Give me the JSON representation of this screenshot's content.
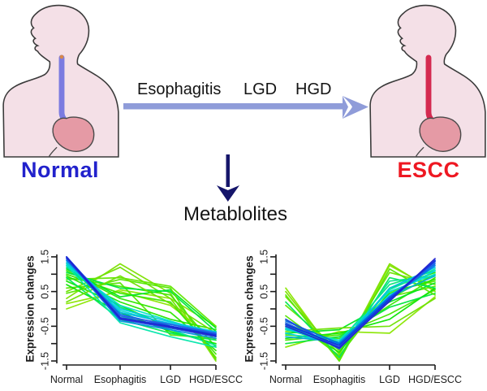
{
  "top": {
    "left_label": "Normal",
    "right_label": "ESCC",
    "stages": [
      "Esophagitis",
      "LGD",
      "HGD"
    ],
    "down_label": "Metablolites",
    "colors": {
      "normal_label": "#2222cc",
      "escc_label": "#ee1822",
      "stage_arrow": "#8f9cd9",
      "down_arrow": "#15156a",
      "body_fill": "#f4e0e7",
      "body_stroke": "#3a3a3a",
      "esophagus_normal": "#7b7be0",
      "esophagus_escc": "#d42a50",
      "esophagus_tip": "#d8884a",
      "stomach_fill": "#e59aa5",
      "stomach_stroke": "#4a4a4a"
    }
  },
  "chart_data": [
    {
      "type": "line",
      "title": "",
      "xlabel": "",
      "ylabel": "Expression changes",
      "categories": [
        "Normal",
        "Esophagitis",
        "LGD",
        "HGD/ESCC"
      ],
      "ytick_labels": [
        1.5,
        0.5,
        -0.5,
        -1.5
      ],
      "ytick_marks": [
        1.5,
        1.0,
        0.5,
        0.0,
        -0.5,
        -1.0,
        -1.5
      ],
      "ylim": [
        -1.6,
        1.6
      ],
      "grid": false,
      "legend": "none",
      "trend": "decreasing",
      "series": [
        {
          "color": "#8ae600",
          "values": [
            0.0,
            0.55,
            0.3,
            -0.5
          ]
        },
        {
          "color": "#7de000",
          "values": [
            0.3,
            1.3,
            0.45,
            -1.5
          ]
        },
        {
          "color": "#70e000",
          "values": [
            0.5,
            1.2,
            0.3,
            -1.4
          ]
        },
        {
          "color": "#62e600",
          "values": [
            0.85,
            0.9,
            0.65,
            -0.5
          ]
        },
        {
          "color": "#55e600",
          "values": [
            0.6,
            0.75,
            -0.75,
            -0.85
          ]
        },
        {
          "color": "#8ae600",
          "values": [
            0.15,
            0.5,
            0.1,
            -0.9
          ]
        },
        {
          "color": "#47e600",
          "values": [
            0.9,
            0.65,
            0.4,
            -1.1
          ]
        },
        {
          "color": "#3ae600",
          "values": [
            1.0,
            0.45,
            0.2,
            -1.3
          ]
        },
        {
          "color": "#2ee600",
          "values": [
            1.1,
            0.3,
            -0.1,
            -1.2
          ]
        },
        {
          "color": "#22e600",
          "values": [
            0.95,
            0.2,
            -0.3,
            -0.6
          ]
        },
        {
          "color": "#16e600",
          "values": [
            0.8,
            0.1,
            -0.55,
            -0.75
          ]
        },
        {
          "color": "#0ae600",
          "values": [
            0.7,
            -0.1,
            -0.65,
            -1.0
          ]
        },
        {
          "color": "#00e61c",
          "values": [
            1.15,
            0.35,
            0.55,
            -0.55
          ]
        },
        {
          "color": "#00e63c",
          "values": [
            1.05,
            0.6,
            0.5,
            -0.65
          ]
        },
        {
          "color": "#00e65a",
          "values": [
            0.9,
            -0.3,
            -0.7,
            -0.9
          ]
        },
        {
          "color": "#00e674",
          "values": [
            1.2,
            0.05,
            -0.5,
            -0.8
          ]
        },
        {
          "color": "#00e68f",
          "values": [
            1.3,
            -0.2,
            -0.6,
            -1.05
          ]
        },
        {
          "color": "#55e600",
          "values": [
            0.45,
            0.85,
            0.6,
            -1.45
          ]
        },
        {
          "color": "#6ee000",
          "values": [
            0.2,
            0.95,
            0.15,
            -0.7
          ]
        },
        {
          "color": "#00e6aa",
          "values": [
            1.25,
            -0.4,
            -0.8,
            -1.1
          ]
        },
        {
          "color": "#00e0c8",
          "values": [
            1.25,
            0.1,
            -0.35,
            -0.75
          ]
        },
        {
          "color": "#00d8d0",
          "values": [
            1.3,
            -0.05,
            -0.45,
            -0.7
          ]
        },
        {
          "color": "#00c8e0",
          "values": [
            1.4,
            0.0,
            -0.38,
            -0.66
          ]
        },
        {
          "color": "#00b4e6",
          "values": [
            1.35,
            -0.1,
            -0.42,
            -0.68
          ]
        },
        {
          "color": "#0090e0",
          "values": [
            1.45,
            -0.35,
            -0.6,
            -0.85
          ]
        },
        {
          "color": "#0073e6",
          "values": [
            1.4,
            -0.15,
            -0.5,
            -0.72
          ]
        },
        {
          "color": "#2a5ae8",
          "values": [
            1.5,
            -0.2,
            -0.45,
            -0.7
          ]
        },
        {
          "color": "#1f4be6",
          "values": [
            1.45,
            -0.3,
            -0.55,
            -0.8
          ]
        },
        {
          "color": "#1133dd",
          "values": [
            1.5,
            -0.25,
            -0.5,
            -0.75
          ]
        },
        {
          "color": "#2222d0",
          "values": [
            1.48,
            -0.28,
            -0.52,
            -0.78
          ]
        }
      ]
    },
    {
      "type": "line",
      "title": "",
      "xlabel": "",
      "ylabel": "Expression changes",
      "categories": [
        "Normal",
        "Esophagitis",
        "LGD",
        "HGD/ESCC"
      ],
      "ytick_labels": [
        1.5,
        0.5,
        -0.5,
        -1.5
      ],
      "ytick_marks": [
        1.5,
        1.0,
        0.5,
        0.0,
        -0.5,
        -1.0,
        -1.5
      ],
      "ylim": [
        -1.6,
        1.6
      ],
      "grid": false,
      "legend": "none",
      "trend": "dip-then-increasing",
      "series": [
        {
          "color": "#8ae600",
          "values": [
            0.6,
            -1.5,
            1.25,
            0.55
          ]
        },
        {
          "color": "#7de000",
          "values": [
            0.5,
            -1.45,
            1.3,
            0.5
          ]
        },
        {
          "color": "#70e000",
          "values": [
            0.35,
            -1.3,
            1.05,
            0.7
          ]
        },
        {
          "color": "#62e600",
          "values": [
            0.1,
            -1.2,
            0.35,
            0.65
          ]
        },
        {
          "color": "#55e600",
          "values": [
            -0.2,
            -1.35,
            0.5,
            0.8
          ]
        },
        {
          "color": "#8ae600",
          "values": [
            -1.1,
            -0.65,
            -0.7,
            0.35
          ]
        },
        {
          "color": "#47e600",
          "values": [
            -0.9,
            -0.75,
            -0.15,
            0.55
          ]
        },
        {
          "color": "#3ae600",
          "values": [
            -0.75,
            -0.85,
            0.1,
            0.9
          ]
        },
        {
          "color": "#2ee600",
          "values": [
            -0.6,
            -1.0,
            0.3,
            1.0
          ]
        },
        {
          "color": "#22e600",
          "values": [
            -0.45,
            -1.1,
            0.45,
            0.85
          ]
        },
        {
          "color": "#16e600",
          "values": [
            -0.3,
            -1.25,
            0.6,
            1.05
          ]
        },
        {
          "color": "#0ae600",
          "values": [
            -0.85,
            -0.7,
            -0.3,
            0.6
          ]
        },
        {
          "color": "#00e61c",
          "values": [
            -0.7,
            -0.6,
            0.2,
            0.75
          ]
        },
        {
          "color": "#00e63c",
          "values": [
            -1.0,
            -0.8,
            0.05,
            0.45
          ]
        },
        {
          "color": "#00e65a",
          "values": [
            0.2,
            -1.4,
            0.9,
            0.6
          ]
        },
        {
          "color": "#00e674",
          "values": [
            -0.55,
            -0.95,
            0.7,
            1.1
          ]
        },
        {
          "color": "#00e68f",
          "values": [
            -0.4,
            -1.15,
            0.8,
            0.95
          ]
        },
        {
          "color": "#55e600",
          "values": [
            0.4,
            -1.5,
            1.15,
            0.4
          ]
        },
        {
          "color": "#6ee000",
          "values": [
            -0.65,
            -0.55,
            -0.5,
            0.3
          ]
        },
        {
          "color": "#00e6aa",
          "values": [
            -0.5,
            -1.05,
            0.55,
            1.15
          ]
        },
        {
          "color": "#00e0c8",
          "values": [
            -0.6,
            -0.9,
            0.5,
            1.0
          ]
        },
        {
          "color": "#00d2e6",
          "values": [
            -0.7,
            -1.0,
            0.4,
            1.1
          ]
        },
        {
          "color": "#00bee6",
          "values": [
            -0.55,
            -1.1,
            0.6,
            1.2
          ]
        },
        {
          "color": "#00aae0",
          "values": [
            -0.8,
            -0.95,
            0.35,
            0.95
          ]
        },
        {
          "color": "#0078e6",
          "values": [
            -0.45,
            -1.05,
            0.3,
            1.25
          ]
        },
        {
          "color": "#0064e6",
          "values": [
            -0.35,
            -1.0,
            0.35,
            1.3
          ]
        },
        {
          "color": "#2a5ae8",
          "values": [
            -0.4,
            -1.1,
            0.25,
            1.35
          ]
        },
        {
          "color": "#1f4be6",
          "values": [
            -0.3,
            -1.15,
            0.3,
            1.4
          ]
        },
        {
          "color": "#1133dd",
          "values": [
            -0.45,
            -1.05,
            0.28,
            1.38
          ]
        },
        {
          "color": "#2222d0",
          "values": [
            -0.5,
            -1.12,
            0.22,
            1.45
          ]
        }
      ]
    }
  ]
}
